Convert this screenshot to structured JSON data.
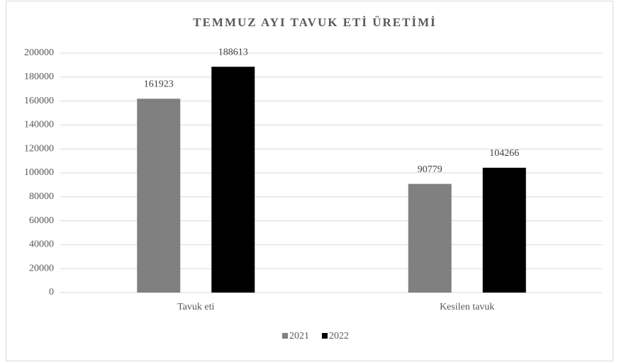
{
  "chart_data": {
    "type": "bar",
    "title": "TEMMUZ AYI TAVUK ETİ ÜRETİMİ",
    "categories": [
      "Tavuk eti",
      "Kesilen tavuk"
    ],
    "series": [
      {
        "name": "2021",
        "color": "#808080",
        "values": [
          161923,
          90779
        ]
      },
      {
        "name": "2022",
        "color": "#000000",
        "values": [
          188613,
          104266
        ]
      }
    ],
    "ylim": [
      0,
      200000
    ],
    "yticks": [
      0,
      20000,
      40000,
      60000,
      80000,
      100000,
      120000,
      140000,
      160000,
      180000,
      200000
    ],
    "grid": true,
    "legend": "bottom"
  }
}
